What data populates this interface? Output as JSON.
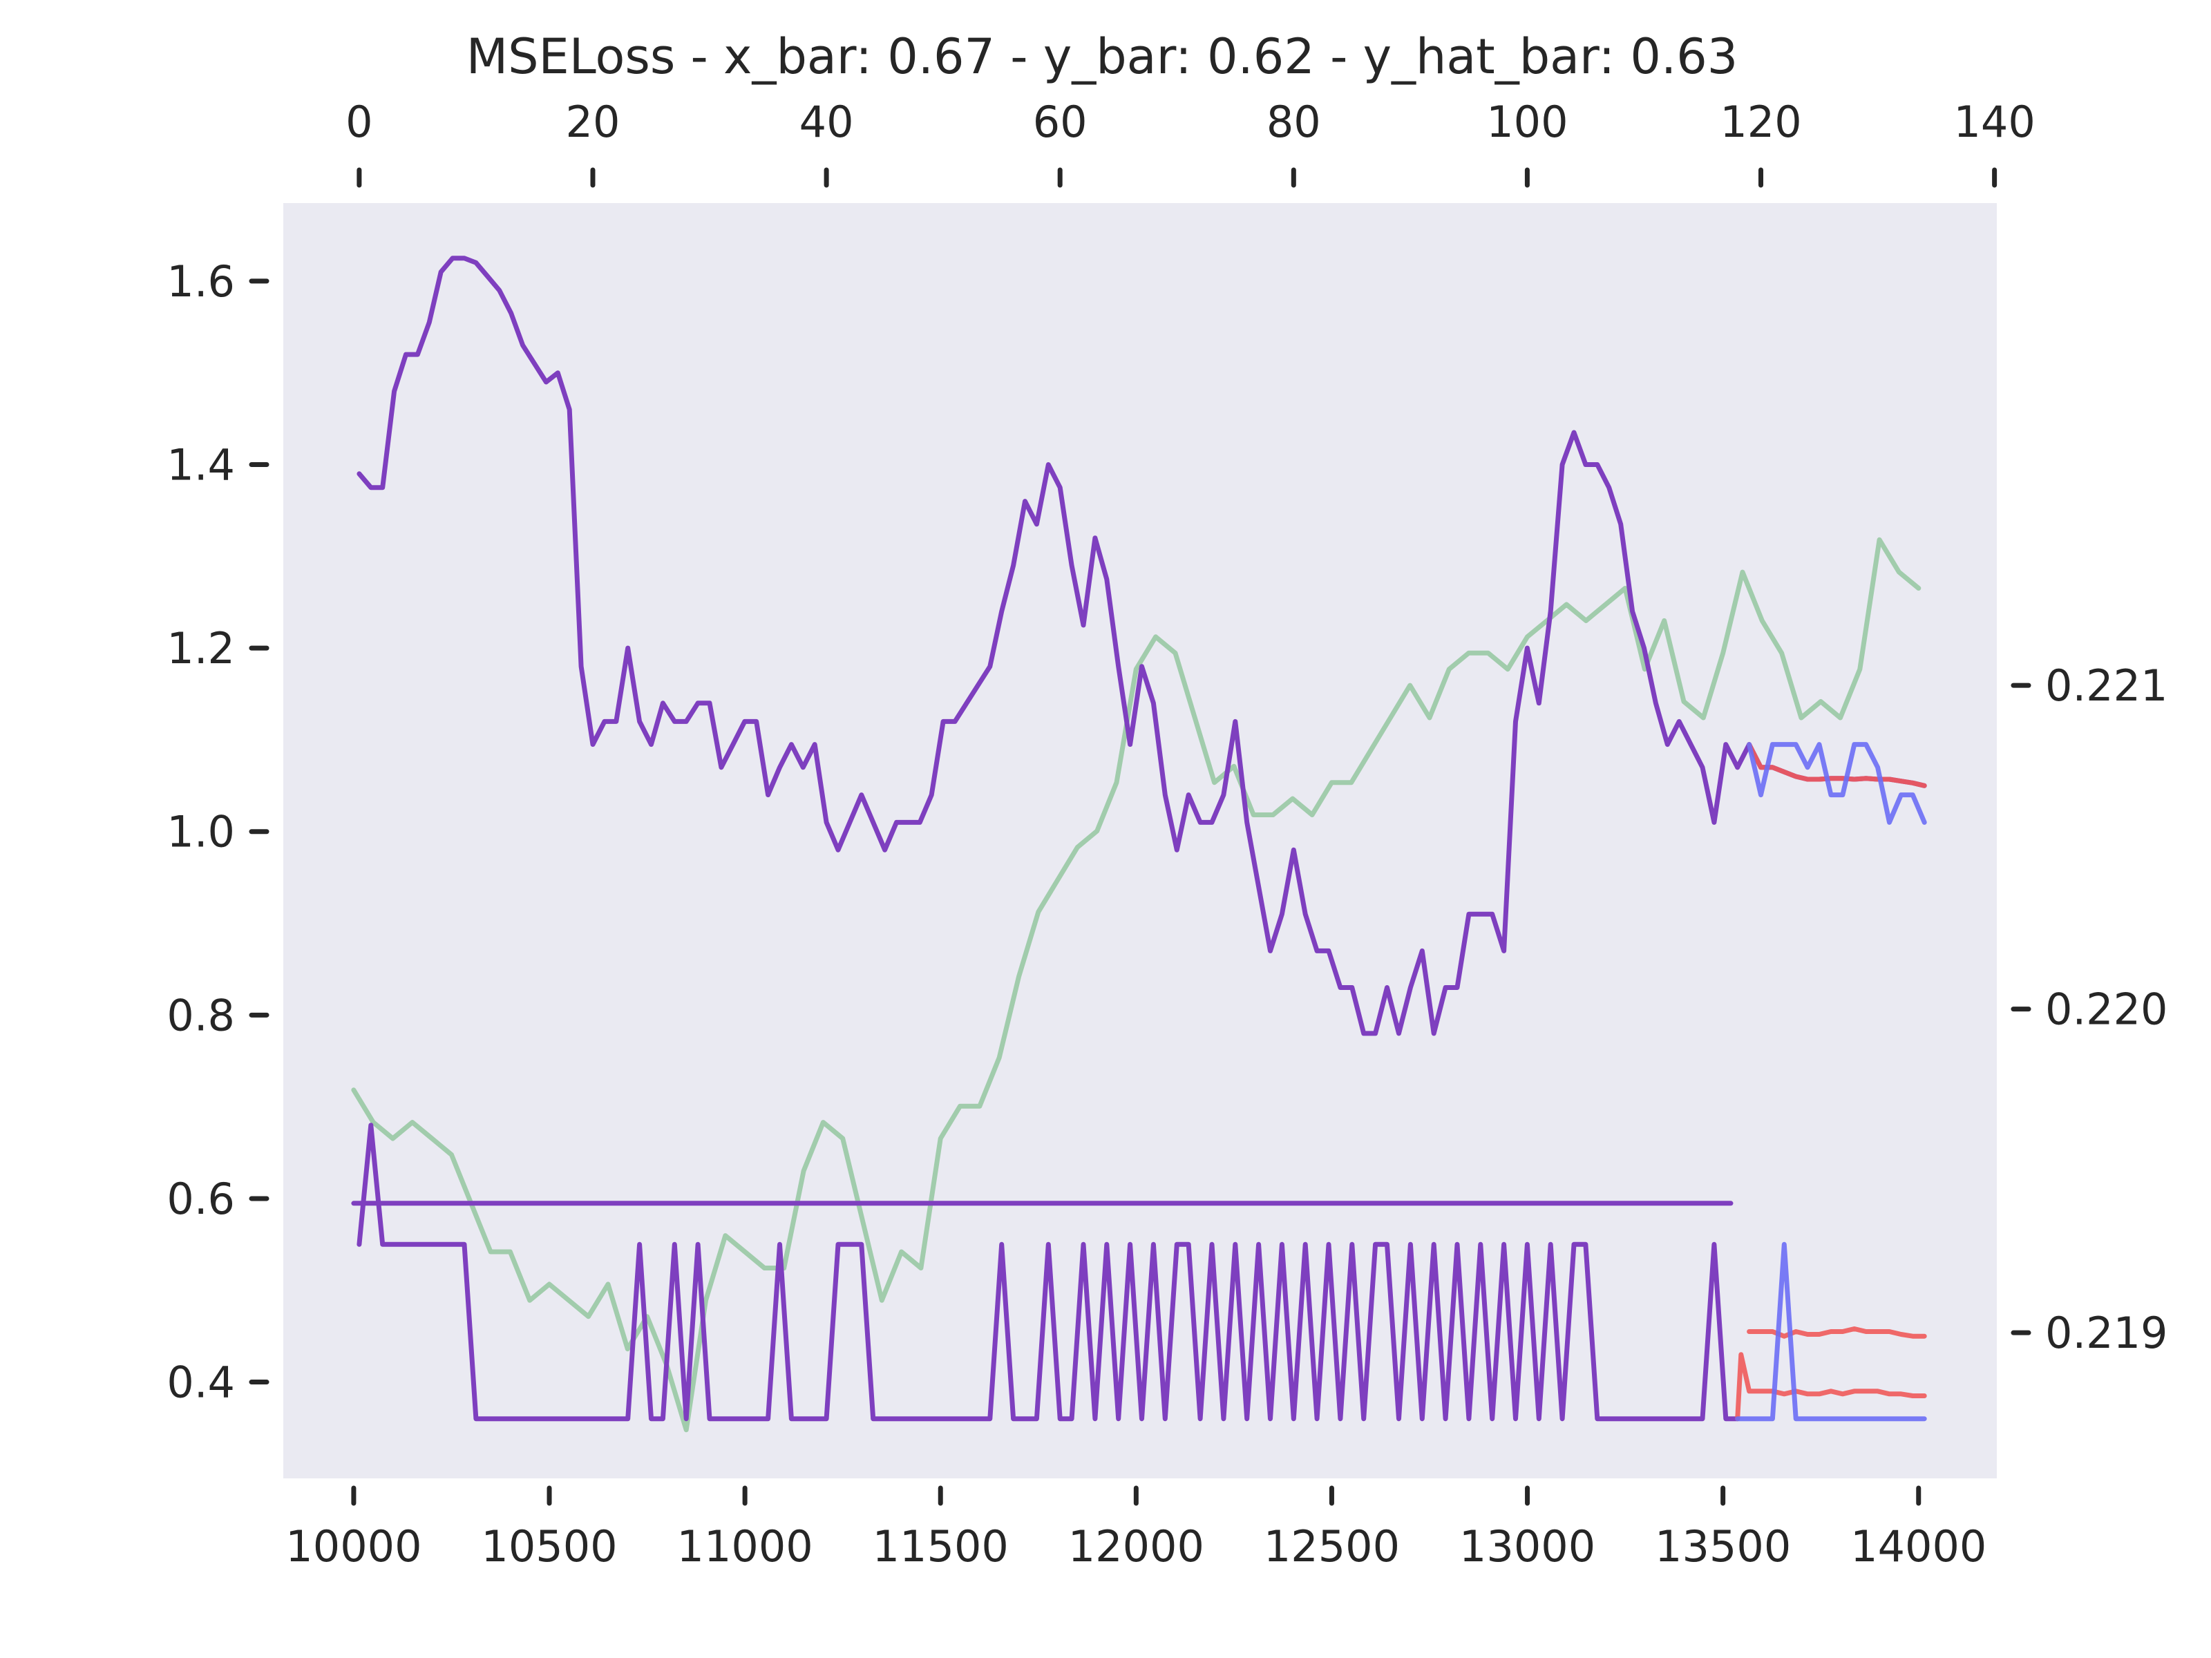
{
  "chart_data": {
    "type": "line",
    "title": "MSELoss - x_bar: 0.67 - y_bar: 0.62 - y_hat_bar: 0.63",
    "background_color": "#eaeaf2",
    "grid": false,
    "axes": {
      "bottom_x": {
        "range": [
          9820,
          14200
        ],
        "ticks": [
          10000,
          10500,
          11000,
          11500,
          12000,
          12500,
          13000,
          13500,
          14000
        ]
      },
      "top_x": {
        "range": [
          -6.5,
          140.2
        ],
        "ticks": [
          0,
          20,
          40,
          60,
          80,
          100,
          120,
          140
        ]
      },
      "left_y": {
        "range": [
          0.295,
          1.685
        ],
        "ticks": [
          "0.4",
          "0.6",
          "0.8",
          "1.0",
          "1.2",
          "1.4",
          "1.6"
        ]
      },
      "right_y": {
        "range": [
          0.21855,
          0.22249
        ],
        "ticks": [
          "0.219",
          "0.220",
          "0.221"
        ]
      }
    },
    "series": [
      {
        "color": "#7e3fbf",
        "axes": "top_x/left_y",
        "x": [
          0,
          1,
          2,
          3,
          4,
          5,
          6,
          7,
          8,
          9,
          10,
          11,
          12,
          13,
          14,
          15,
          16,
          17,
          18,
          19,
          20,
          21,
          22,
          23,
          24,
          25,
          26,
          27,
          28,
          29,
          30,
          31,
          32,
          33,
          34,
          35,
          36,
          37,
          38,
          39,
          40,
          41,
          42,
          43,
          44,
          45,
          46,
          47,
          48,
          49,
          50,
          51,
          52,
          53,
          54,
          55,
          56,
          57,
          58,
          59,
          60,
          61,
          62,
          63,
          64,
          65,
          66,
          67,
          68,
          69,
          70,
          71,
          72,
          73,
          74,
          75,
          76,
          77,
          78,
          79,
          80,
          81,
          82,
          83,
          84,
          85,
          86,
          87,
          88,
          89,
          90,
          91,
          92,
          93,
          94,
          95,
          96,
          97,
          98,
          99,
          100,
          101,
          102,
          103,
          104,
          105,
          106,
          107,
          108,
          109,
          110,
          111,
          112,
          113,
          114,
          115,
          116,
          117,
          118
        ],
        "y": [
          1.39,
          1.375,
          1.375,
          1.48,
          1.52,
          1.52,
          1.555,
          1.61,
          1.625,
          1.625,
          1.62,
          1.605,
          1.59,
          1.565,
          1.53,
          1.51,
          1.49,
          1.5,
          1.46,
          1.18,
          1.095,
          1.12,
          1.12,
          1.2,
          1.12,
          1.095,
          1.14,
          1.12,
          1.12,
          1.14,
          1.14,
          1.07,
          1.095,
          1.12,
          1.12,
          1.04,
          1.07,
          1.095,
          1.07,
          1.095,
          1.01,
          0.98,
          1.01,
          1.04,
          1.01,
          0.98,
          1.01,
          1.01,
          1.01,
          1.04,
          1.12,
          1.12,
          1.14,
          1.16,
          1.18,
          1.24,
          1.29,
          1.36,
          1.335,
          1.4,
          1.375,
          1.29,
          1.225,
          1.32,
          1.275,
          1.18,
          1.095,
          1.18,
          1.14,
          1.04,
          0.98,
          1.04,
          1.01,
          1.01,
          1.04,
          1.12,
          1.01,
          0.94,
          0.87,
          0.91,
          0.98,
          0.91,
          0.87,
          0.87,
          0.83,
          0.83,
          0.78,
          0.78,
          0.83,
          0.78,
          0.83,
          0.87,
          0.78,
          0.83,
          0.83,
          0.91,
          0.91,
          0.91,
          0.87,
          1.12,
          1.2,
          1.14,
          1.24,
          1.4,
          1.435,
          1.4,
          1.4,
          1.375,
          1.335,
          1.24,
          1.2,
          1.14,
          1.095,
          1.12,
          1.095,
          1.07,
          1.01,
          1.095,
          1.07
        ]
      },
      {
        "color": "#7e3fbf",
        "axes": "top_x/left_y",
        "x": [
          118,
          119,
          120,
          121,
          122,
          123,
          124,
          125,
          126,
          127,
          128,
          129,
          130,
          131,
          132,
          133,
          134
        ],
        "y": [
          1.07,
          1.095,
          1.07,
          1.07,
          1.065,
          1.06,
          1.057,
          1.057,
          1.058,
          1.058,
          1.057,
          1.058,
          1.057,
          1.057,
          1.055,
          1.053,
          1.05
        ]
      },
      {
        "color": "#ef5a5a",
        "axes": "top_x/left_y",
        "x": [
          119,
          120,
          121,
          122,
          123,
          124,
          125,
          126,
          127,
          128,
          129,
          130,
          131,
          132,
          133,
          134
        ],
        "y": [
          1.095,
          1.07,
          1.07,
          1.065,
          1.06,
          1.057,
          1.057,
          1.058,
          1.058,
          1.057,
          1.058,
          1.057,
          1.057,
          1.055,
          1.053,
          1.05
        ]
      },
      {
        "color": "#6b6ef5",
        "axes": "top_x/left_y",
        "x": [
          119,
          120,
          121,
          122,
          123,
          124,
          125,
          126,
          127,
          128,
          129,
          130,
          131,
          132,
          133,
          134
        ],
        "y": [
          1.095,
          1.04,
          1.095,
          1.095,
          1.095,
          1.07,
          1.095,
          1.04,
          1.04,
          1.095,
          1.095,
          1.07,
          1.01,
          1.04,
          1.04,
          1.01
        ]
      },
      {
        "color": "#8fc49a",
        "axes": "bottom_x/right_y",
        "x": [
          10000,
          10050,
          10100,
          10150,
          10200,
          10250,
          10300,
          10350,
          10400,
          10450,
          10500,
          10550,
          10600,
          10650,
          10700,
          10750,
          10800,
          10850,
          10900,
          10950,
          11000,
          11050,
          11100,
          11150,
          11200,
          11250,
          11300,
          11350,
          11400,
          11450,
          11500,
          11550,
          11600,
          11650,
          11700,
          11750,
          11800,
          11850,
          11900,
          11950,
          12000,
          12050,
          12100,
          12150,
          12200,
          12250,
          12300,
          12350,
          12400,
          12450,
          12500,
          12550,
          12600,
          12650,
          12700,
          12750,
          12800,
          12850,
          12900,
          12950,
          13000,
          13050,
          13100,
          13150,
          13200,
          13250,
          13300,
          13350,
          13400,
          13450,
          13500,
          13550,
          13600,
          13650,
          13700,
          13750,
          13800,
          13850,
          13900,
          13950,
          14000
        ],
        "y": [
          0.21975,
          0.21965,
          0.2196,
          0.21965,
          0.2196,
          0.21955,
          0.2194,
          0.21925,
          0.21925,
          0.2191,
          0.21915,
          0.2191,
          0.21905,
          0.21915,
          0.21895,
          0.21905,
          0.2189,
          0.2187,
          0.2191,
          0.2193,
          0.21925,
          0.2192,
          0.2192,
          0.2195,
          0.21965,
          0.2196,
          0.21935,
          0.2191,
          0.21925,
          0.2192,
          0.2196,
          0.2197,
          0.2197,
          0.21985,
          0.2201,
          0.2203,
          0.2204,
          0.2205,
          0.22055,
          0.2207,
          0.22105,
          0.22115,
          0.2211,
          0.2209,
          0.2207,
          0.22075,
          0.2206,
          0.2206,
          0.22065,
          0.2206,
          0.2207,
          0.2207,
          0.2208,
          0.2209,
          0.221,
          0.2209,
          0.22105,
          0.2211,
          0.2211,
          0.22105,
          0.22115,
          0.2212,
          0.22125,
          0.2212,
          0.22125,
          0.2213,
          0.22105,
          0.2212,
          0.22095,
          0.2209,
          0.2211,
          0.22135,
          0.2212,
          0.2211,
          0.2209,
          0.22095,
          0.2209,
          0.22105,
          0.22145,
          0.22135,
          0.2213
        ]
      },
      {
        "color": "#7e3fbf",
        "axes": "bottom_x/right_y",
        "x": [
          10000,
          10030,
          10050,
          11600,
          11700,
          11800,
          11900,
          12000,
          12100,
          12200,
          12300,
          12400,
          12500,
          12600,
          12700,
          12800,
          12900,
          13000,
          13100,
          13200,
          13300,
          13400,
          13500,
          13520
        ],
        "y": [
          0.2194,
          0.2194,
          0.2194,
          0.2194,
          0.2194,
          0.2194,
          0.2194,
          0.2194,
          0.2194,
          0.2194,
          0.2194,
          0.2194,
          0.2194,
          0.2194,
          0.2194,
          0.2194,
          0.2194,
          0.2194,
          0.2194,
          0.2194,
          0.2194,
          0.2194,
          0.2194,
          0.2194
        ]
      }
    ],
    "bottom_series_left_axis": [
      {
        "color": "#7e3fbf",
        "axes": "top_x/left_y",
        "x": [
          0,
          1,
          2,
          3,
          4,
          5,
          6,
          7,
          8,
          9,
          10,
          11,
          12,
          13,
          14,
          15,
          16,
          17,
          18,
          19,
          20,
          21,
          22,
          23,
          24,
          25,
          26,
          27,
          28,
          29,
          30,
          31,
          32,
          33,
          34,
          35,
          36,
          37,
          38,
          39,
          40,
          41,
          42,
          43,
          44,
          45,
          46,
          47,
          48,
          49,
          50,
          51,
          52,
          53,
          54,
          55,
          56,
          57,
          58,
          59,
          60,
          61,
          62,
          63,
          64,
          65,
          66,
          67,
          68,
          69,
          70,
          71,
          72,
          73,
          74,
          75,
          76,
          77,
          78,
          79,
          80,
          81,
          82,
          83,
          84,
          85,
          86,
          87,
          88,
          89,
          90,
          91,
          92,
          93,
          94,
          95,
          96,
          97,
          98,
          99,
          100,
          101,
          102,
          103,
          104,
          105,
          106,
          107,
          108,
          109,
          110,
          111,
          112,
          113,
          114,
          115,
          116,
          117,
          118
        ],
        "y": [
          0.55,
          0.68,
          0.55,
          0.55,
          0.55,
          0.55,
          0.55,
          0.55,
          0.55,
          0.55,
          0.36,
          0.36,
          0.36,
          0.36,
          0.36,
          0.36,
          0.36,
          0.36,
          0.36,
          0.36,
          0.36,
          0.36,
          0.36,
          0.36,
          0.55,
          0.36,
          0.36,
          0.55,
          0.36,
          0.55,
          0.36,
          0.36,
          0.36,
          0.36,
          0.36,
          0.36,
          0.55,
          0.36,
          0.36,
          0.36,
          0.36,
          0.55,
          0.55,
          0.55,
          0.36,
          0.36,
          0.36,
          0.36,
          0.36,
          0.36,
          0.36,
          0.36,
          0.36,
          0.36,
          0.36,
          0.55,
          0.36,
          0.36,
          0.36,
          0.55,
          0.36,
          0.36,
          0.55,
          0.36,
          0.55,
          0.36,
          0.55,
          0.36,
          0.55,
          0.36,
          0.55,
          0.55,
          0.36,
          0.55,
          0.36,
          0.55,
          0.36,
          0.55,
          0.36,
          0.55,
          0.36,
          0.55,
          0.36,
          0.55,
          0.36,
          0.55,
          0.36,
          0.55,
          0.55,
          0.36,
          0.55,
          0.36,
          0.55,
          0.36,
          0.55,
          0.36,
          0.55,
          0.36,
          0.55,
          0.36,
          0.55,
          0.36,
          0.55,
          0.36,
          0.55,
          0.55,
          0.36,
          0.36,
          0.36,
          0.36,
          0.36,
          0.36,
          0.36,
          0.36,
          0.36,
          0.36,
          0.55,
          0.36,
          0.36
        ]
      },
      {
        "color": "#ef5a5a",
        "axes": "top_x/left_y",
        "x": [
          118,
          118.3,
          119,
          120,
          121,
          122,
          123,
          124,
          125,
          126,
          127,
          128,
          129,
          130,
          131,
          132,
          133,
          134
        ],
        "y": [
          0.36,
          0.43,
          0.39,
          0.39,
          0.39,
          0.387,
          0.39,
          0.387,
          0.387,
          0.39,
          0.387,
          0.39,
          0.39,
          0.39,
          0.387,
          0.387,
          0.385,
          0.385
        ]
      },
      {
        "color": "#ef5a5a",
        "axes": "top_x/left_y",
        "x": [
          119,
          120,
          121,
          122,
          123,
          124,
          125,
          126,
          127,
          128,
          129,
          130,
          131,
          132,
          133,
          134
        ],
        "y": [
          0.455,
          0.455,
          0.455,
          0.45,
          0.455,
          0.452,
          0.452,
          0.455,
          0.455,
          0.458,
          0.455,
          0.455,
          0.455,
          0.452,
          0.45,
          0.45
        ]
      },
      {
        "color": "#6b6ef5",
        "axes": "top_x/left_y",
        "x": [
          118,
          119,
          120,
          121,
          122,
          123,
          124,
          125,
          126,
          127,
          128,
          129,
          130,
          131,
          132,
          133,
          134
        ],
        "y": [
          0.36,
          0.36,
          0.36,
          0.36,
          0.55,
          0.36,
          0.36,
          0.36,
          0.36,
          0.36,
          0.36,
          0.36,
          0.36,
          0.36,
          0.36,
          0.36,
          0.36
        ]
      }
    ]
  }
}
